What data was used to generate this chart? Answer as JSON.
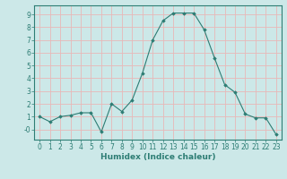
{
  "x": [
    0,
    1,
    2,
    3,
    4,
    5,
    6,
    7,
    8,
    9,
    10,
    11,
    12,
    13,
    14,
    15,
    16,
    17,
    18,
    19,
    20,
    21,
    22,
    23
  ],
  "y": [
    1.0,
    0.6,
    1.0,
    1.1,
    1.3,
    1.3,
    -0.2,
    2.0,
    1.4,
    2.3,
    4.4,
    7.0,
    8.5,
    9.1,
    9.1,
    9.1,
    7.8,
    5.6,
    3.5,
    2.9,
    1.2,
    0.9,
    0.9,
    -0.4
  ],
  "line_color": "#2d7d74",
  "marker": "D",
  "marker_size": 1.8,
  "bg_color": "#cce8e8",
  "grid_color": "#e8b8b8",
  "xlabel": "Humidex (Indice chaleur)",
  "xlabel_fontsize": 6.5,
  "tick_fontsize": 5.5,
  "ylim": [
    -0.8,
    9.7
  ],
  "xlim": [
    -0.5,
    23.5
  ],
  "yticks": [
    0,
    1,
    2,
    3,
    4,
    5,
    6,
    7,
    8,
    9
  ],
  "ytick_labels": [
    "-0",
    "1",
    "2",
    "3",
    "4",
    "5",
    "6",
    "7",
    "8",
    "9"
  ],
  "xticks": [
    0,
    1,
    2,
    3,
    4,
    5,
    6,
    7,
    8,
    9,
    10,
    11,
    12,
    13,
    14,
    15,
    16,
    17,
    18,
    19,
    20,
    21,
    22,
    23
  ]
}
